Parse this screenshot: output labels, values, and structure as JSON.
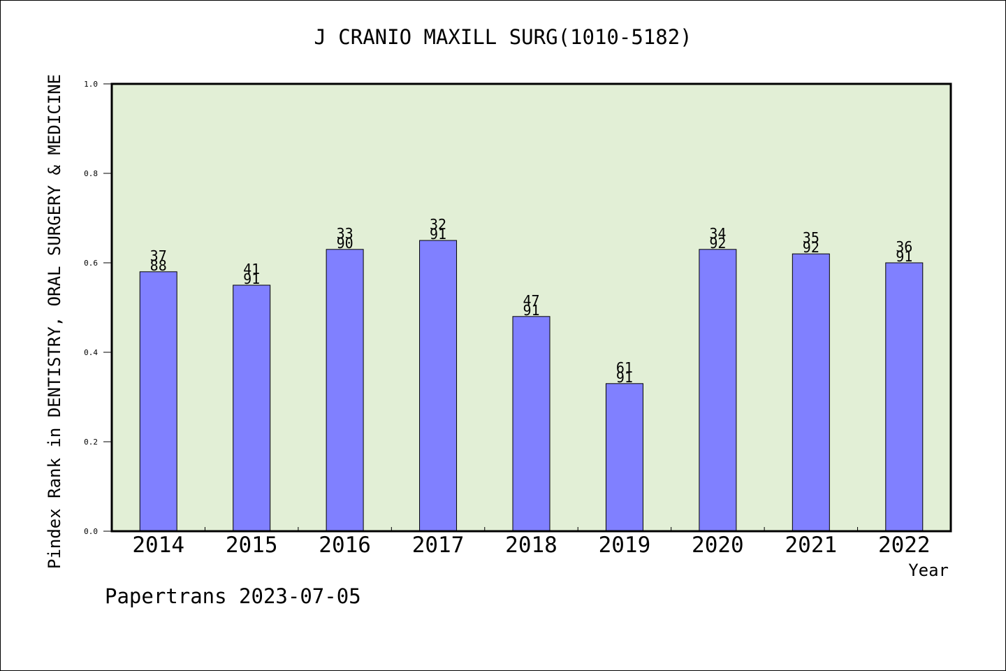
{
  "chart_data": {
    "type": "bar",
    "title": "J CRANIO MAXILL SURG(1010-5182)",
    "xlabel": "Year",
    "ylabel": "Pindex Rank in DENTISTRY, ORAL SURGERY & MEDICINE",
    "categories": [
      "2014",
      "2015",
      "2016",
      "2017",
      "2018",
      "2019",
      "2020",
      "2021",
      "2022"
    ],
    "values": [
      0.58,
      0.55,
      0.63,
      0.65,
      0.48,
      0.33,
      0.63,
      0.62,
      0.6
    ],
    "bar_labels": [
      [
        "37",
        "88"
      ],
      [
        "41",
        "91"
      ],
      [
        "33",
        "90"
      ],
      [
        "32",
        "91"
      ],
      [
        "47",
        "91"
      ],
      [
        "61",
        "91"
      ],
      [
        "34",
        "92"
      ],
      [
        "35",
        "92"
      ],
      [
        "36",
        "91"
      ]
    ],
    "ylim": [
      0,
      1.0
    ],
    "yticks": [
      "0.0",
      "0.2",
      "0.4",
      "0.6",
      "0.8",
      "1.0"
    ],
    "grid": false,
    "colors": {
      "bar_fill": "#8080ff",
      "plot_background": "#e2efd6",
      "axis": "#000000"
    }
  },
  "footer": "Papertrans 2023-07-05"
}
